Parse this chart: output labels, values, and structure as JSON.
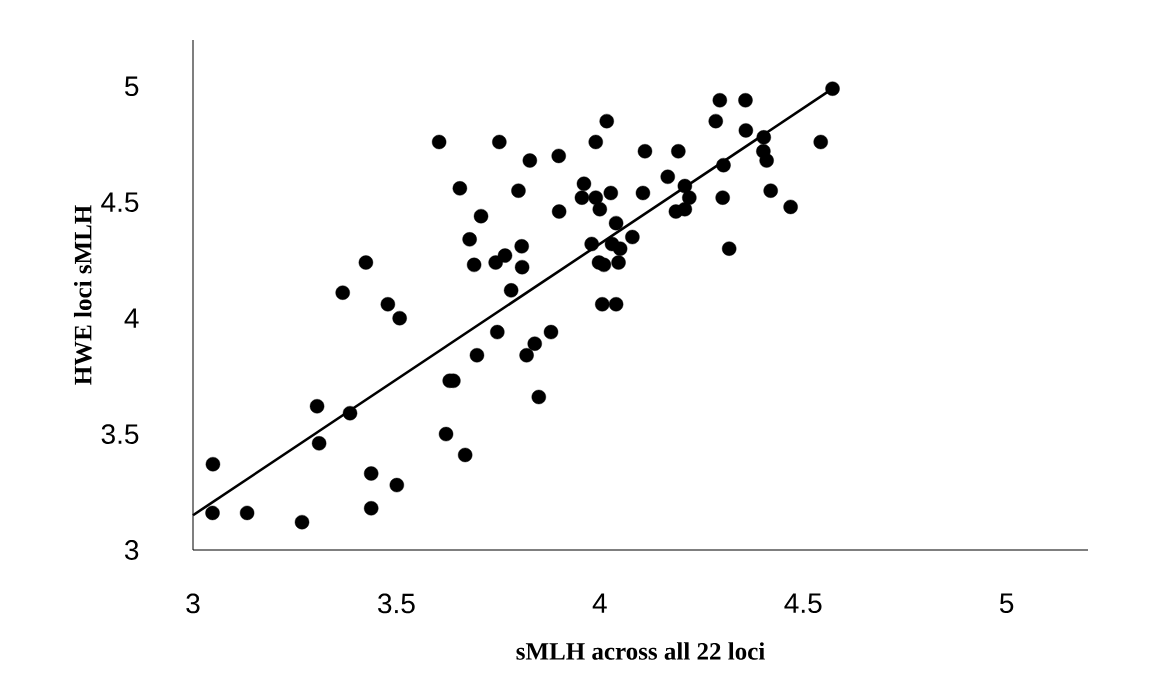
{
  "chart_data": {
    "type": "scatter",
    "xlabel": "sMLH across all 22 loci",
    "ylabel": "HWE loci sMLH",
    "xlim": [
      3,
      5.2
    ],
    "ylim": [
      3,
      5.2
    ],
    "xticks": [
      3,
      3.5,
      4,
      4.5,
      5
    ],
    "yticks": [
      3,
      3.5,
      4,
      4.5,
      5
    ],
    "grid": false,
    "series": [
      {
        "marker": "circle",
        "color": "#000000",
        "x": [
          3.605,
          3.753,
          4.017,
          3.99,
          4.111,
          3.828,
          3.899,
          3.656,
          3.8,
          3.961,
          3.956,
          3.99,
          4.0,
          4.027,
          4.106,
          3.9,
          3.708,
          4.04,
          3.68,
          3.808,
          3.98,
          4.03,
          4.05,
          4.08,
          3.425,
          3.691,
          3.744,
          3.767,
          3.809,
          3.998,
          4.01,
          4.046,
          3.368,
          3.479,
          3.508,
          3.782,
          4.006,
          4.04,
          3.748,
          3.88,
          3.698,
          3.82,
          3.84,
          3.631,
          3.64,
          3.85,
          3.305,
          3.386,
          3.31,
          3.622,
          3.669,
          3.049,
          3.438,
          3.501,
          3.048,
          3.133,
          3.268,
          3.438,
          4.295,
          4.358,
          4.285,
          4.359,
          4.403,
          4.572,
          4.543,
          4.402,
          4.41,
          4.193,
          4.304,
          4.167,
          4.209,
          4.22,
          4.187,
          4.209,
          4.302,
          4.42,
          4.469,
          4.318
        ],
        "values": [
          4.76,
          4.76,
          4.85,
          4.76,
          4.72,
          4.68,
          4.7,
          4.56,
          4.55,
          4.58,
          4.52,
          4.52,
          4.47,
          4.54,
          4.54,
          4.46,
          4.44,
          4.41,
          4.34,
          4.31,
          4.32,
          4.32,
          4.3,
          4.35,
          4.24,
          4.23,
          4.24,
          4.27,
          4.22,
          4.24,
          4.23,
          4.24,
          4.11,
          4.06,
          4.0,
          4.12,
          4.06,
          4.06,
          3.94,
          3.94,
          3.84,
          3.84,
          3.89,
          3.73,
          3.73,
          3.66,
          3.62,
          3.59,
          3.46,
          3.5,
          3.41,
          3.37,
          3.33,
          3.28,
          3.16,
          3.16,
          3.12,
          3.18,
          4.94,
          4.94,
          4.85,
          4.81,
          4.78,
          4.99,
          4.76,
          4.72,
          4.68,
          4.72,
          4.66,
          4.61,
          4.57,
          4.52,
          4.46,
          4.47,
          4.52,
          4.55,
          4.48,
          4.3
        ]
      },
      {
        "type": "line",
        "marker": "none",
        "color": "#000000",
        "x": [
          3.0,
          4.572
        ],
        "values": [
          3.15,
          4.99
        ]
      }
    ]
  }
}
